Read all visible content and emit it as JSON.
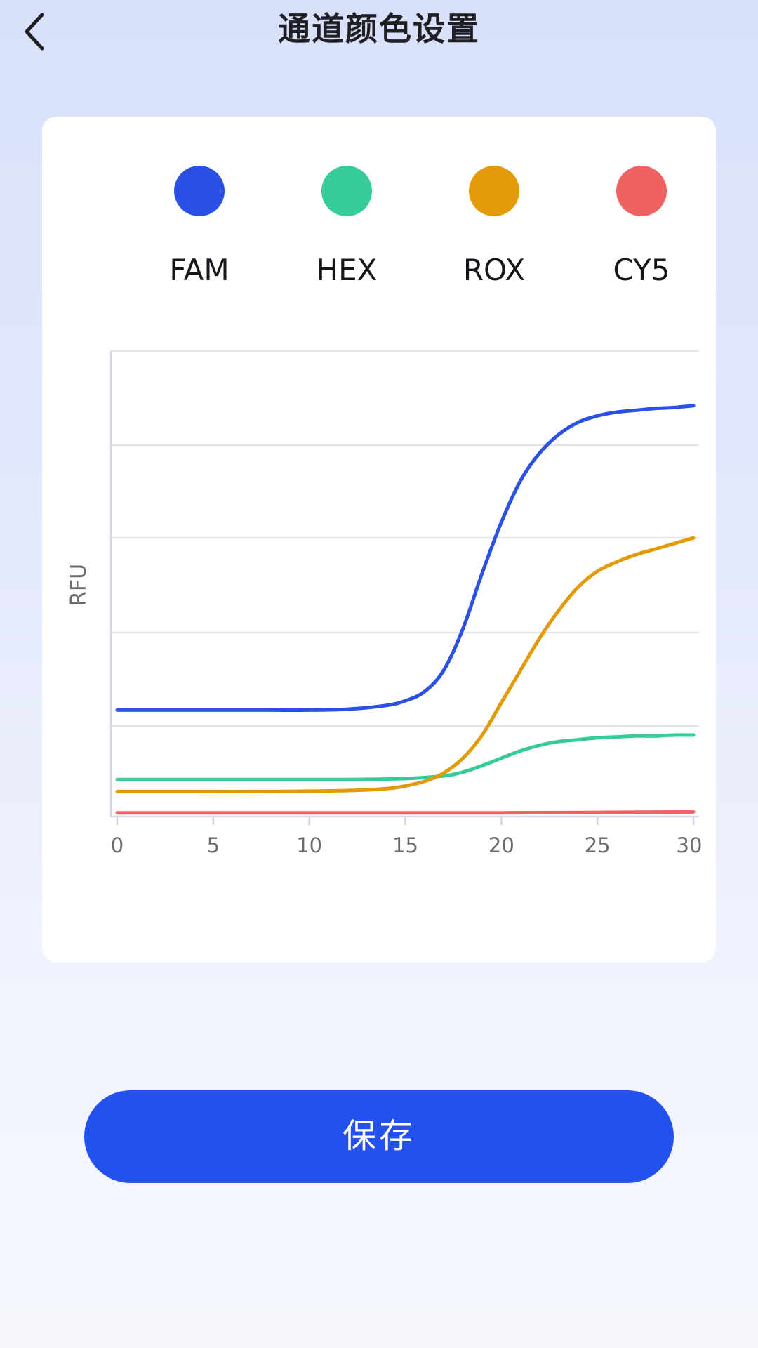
{
  "header": {
    "title": "通道颜色设置",
    "back_icon": "chevron-left-icon"
  },
  "legend": [
    {
      "label": "FAM",
      "color": "#2a50e6"
    },
    {
      "label": "HEX",
      "color": "#36cc97"
    },
    {
      "label": "ROX",
      "color": "#e39a07"
    },
    {
      "label": "CY5",
      "color": "#f06262"
    }
  ],
  "chart_data": {
    "type": "line",
    "ylabel": "RFU",
    "xlabel": "",
    "xlim": [
      0,
      30
    ],
    "ylim": [
      0,
      5
    ],
    "x_ticks": [
      "0",
      "5",
      "10",
      "15",
      "20",
      "25",
      "30"
    ],
    "grid": true,
    "series": [
      {
        "name": "FAM",
        "color": "#2a50e6",
        "x": [
          0,
          2,
          4,
          6,
          8,
          10,
          12,
          14,
          15,
          16,
          17,
          18,
          19,
          20,
          21,
          22,
          23,
          24,
          25,
          26,
          27,
          28,
          29,
          30
        ],
        "y": [
          1.12,
          1.12,
          1.12,
          1.12,
          1.12,
          1.12,
          1.13,
          1.17,
          1.22,
          1.32,
          1.55,
          2.0,
          2.6,
          3.15,
          3.6,
          3.9,
          4.1,
          4.23,
          4.3,
          4.34,
          4.36,
          4.38,
          4.39,
          4.41
        ]
      },
      {
        "name": "HEX",
        "color": "#36cc97",
        "x": [
          0,
          4,
          8,
          12,
          15,
          17,
          18,
          19,
          20,
          21,
          22,
          23,
          24,
          25,
          26,
          27,
          28,
          29,
          30
        ],
        "y": [
          0.37,
          0.37,
          0.37,
          0.37,
          0.38,
          0.41,
          0.45,
          0.52,
          0.6,
          0.68,
          0.74,
          0.78,
          0.8,
          0.82,
          0.83,
          0.84,
          0.84,
          0.85,
          0.85
        ]
      },
      {
        "name": "ROX",
        "color": "#e39a07",
        "x": [
          0,
          4,
          8,
          12,
          14,
          15,
          16,
          17,
          18,
          19,
          20,
          21,
          22,
          23,
          24,
          25,
          26,
          27,
          28,
          29,
          30
        ],
        "y": [
          0.24,
          0.24,
          0.24,
          0.25,
          0.27,
          0.3,
          0.35,
          0.44,
          0.6,
          0.85,
          1.2,
          1.55,
          1.9,
          2.2,
          2.45,
          2.62,
          2.72,
          2.8,
          2.86,
          2.92,
          2.98
        ]
      },
      {
        "name": "CY5",
        "color": "#f06262",
        "x": [
          0,
          10,
          20,
          30
        ],
        "y": [
          0.01,
          0.01,
          0.01,
          0.02
        ]
      }
    ]
  },
  "save_button": {
    "label": "保存"
  }
}
